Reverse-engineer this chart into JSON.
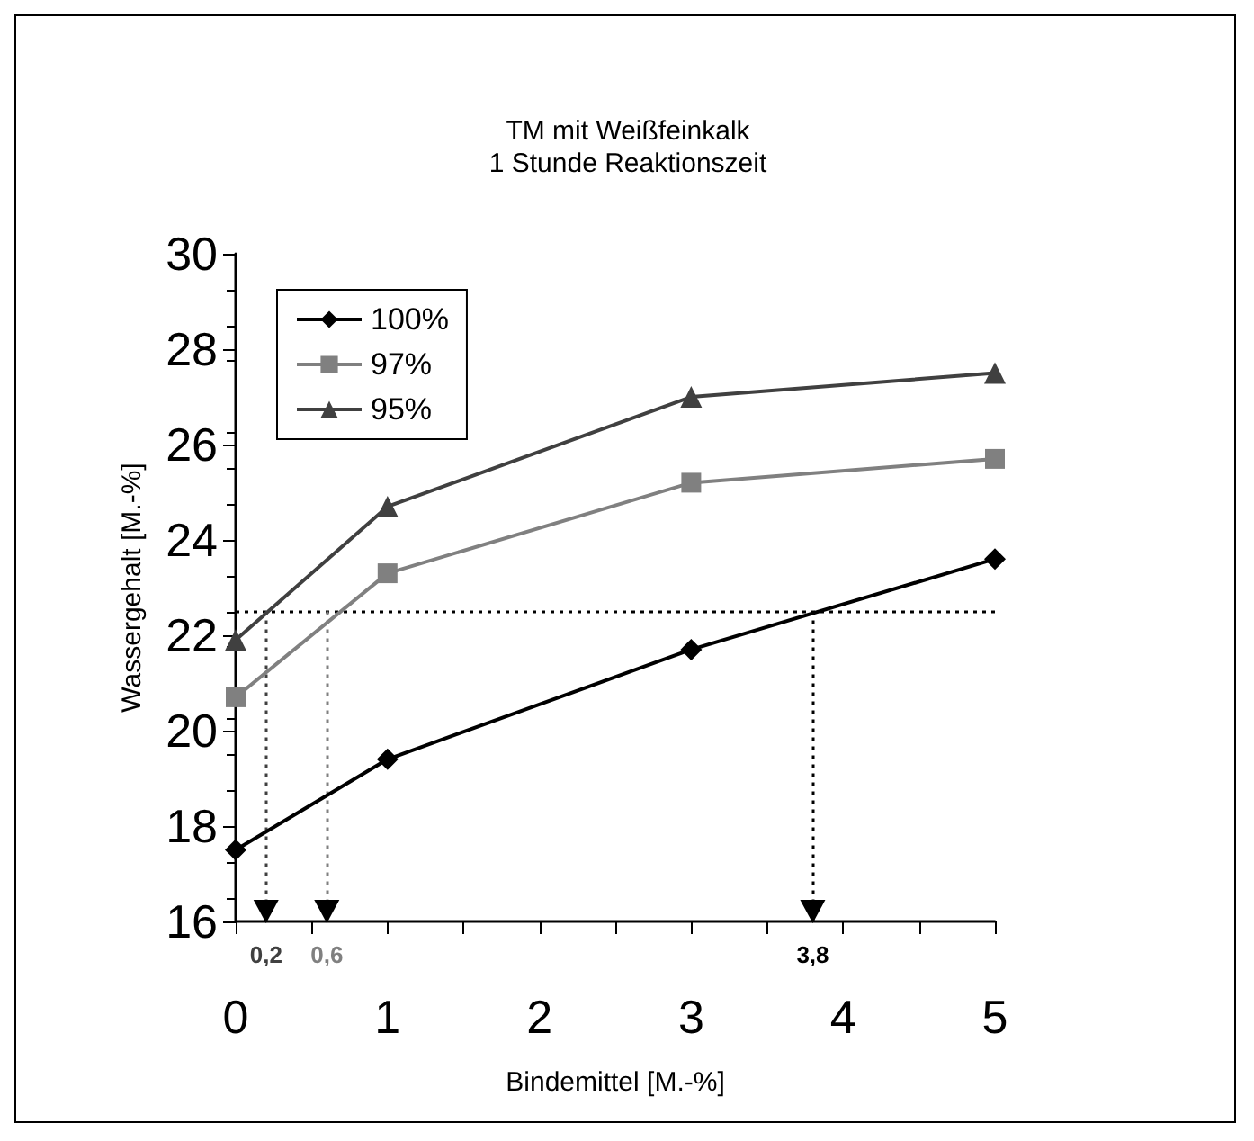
{
  "chart_data": {
    "type": "line",
    "title": "TM mit Weißfeinkalk\n1 Stunde Reaktionszeit",
    "xlabel": "Bindemittel [M.-%]",
    "ylabel": "Wassergehalt [M.-%]",
    "x": [
      0,
      1,
      3,
      5
    ],
    "series": [
      {
        "name": "100%",
        "color": "#000000",
        "marker": "diamond",
        "values": [
          17.5,
          19.4,
          21.7,
          23.6
        ]
      },
      {
        "name": "97%",
        "color": "#808080",
        "marker": "square",
        "values": [
          20.7,
          23.3,
          25.2,
          25.7
        ]
      },
      {
        "name": "95%",
        "color": "#404040",
        "marker": "triangle",
        "values": [
          21.9,
          24.7,
          27.0,
          27.5
        ]
      }
    ],
    "xlim": [
      0,
      5
    ],
    "xticks": [
      0,
      1,
      2,
      3,
      4,
      5
    ],
    "ylim": [
      16,
      30
    ],
    "yticks": [
      16,
      18,
      20,
      22,
      24,
      26,
      28,
      30
    ],
    "ref_lines": [
      {
        "axis": "y",
        "value": 22.5,
        "color": "#000000",
        "line_style": "dotted"
      },
      {
        "axis": "x",
        "value": 0.2,
        "label": "0,2",
        "color": "#404040",
        "line_style": "dotted"
      },
      {
        "axis": "x",
        "value": 0.6,
        "label": "0,6",
        "color": "#808080",
        "line_style": "dotted"
      },
      {
        "axis": "x",
        "value": 3.8,
        "label": "3,8",
        "color": "#000000",
        "line_style": "dotted"
      }
    ],
    "grid": false,
    "legend": "top left",
    "line_style": "solid"
  }
}
